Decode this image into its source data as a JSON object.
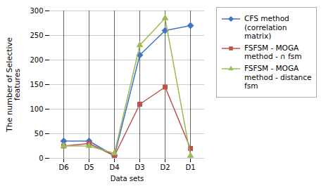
{
  "chart_data": {
    "type": "line",
    "categories": [
      "D6",
      "D5",
      "D4",
      "D3",
      "D2",
      "D1"
    ],
    "series": [
      {
        "name": "CFS method\n(correlation\nmatrix)",
        "color": "#4472C4",
        "marker": "diamond",
        "line_style": "solid",
        "values": [
          35,
          35,
          5,
          210,
          260,
          270
        ]
      },
      {
        "name": "FSFSM - MOGA\nmethod - ∩ fsm",
        "color": "#C0504D",
        "marker": "square",
        "line_style": "solid",
        "values": [
          25,
          30,
          5,
          110,
          145,
          20
        ]
      },
      {
        "name": "FSFSM - MOGA\nmethod - distance\nfsm",
        "color": "#9BBB59",
        "marker": "triangle",
        "line_style": "solid",
        "values": [
          25,
          25,
          10,
          230,
          285,
          5
        ]
      }
    ],
    "xlabel": "Data sets",
    "ylabel": "The number of Selective\nfeatures",
    "ylim": [
      0,
      300
    ],
    "yticks": [
      0,
      50,
      100,
      150,
      200,
      250,
      300
    ],
    "grid": true,
    "legend": "right"
  }
}
